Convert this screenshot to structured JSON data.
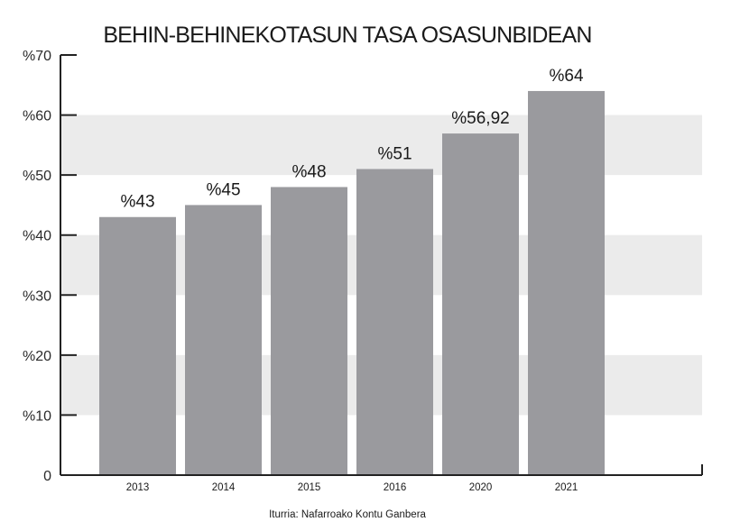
{
  "chart_data": {
    "type": "bar",
    "title": "BEHIN-BEHINEKOTASUN TASA OSASUNBIDEAN",
    "categories": [
      "2013",
      "2014",
      "2015",
      "2016",
      "2020",
      "2021"
    ],
    "values": [
      43,
      45,
      48,
      51,
      56.92,
      64
    ],
    "data_labels": [
      "%43",
      "%45",
      "%48",
      "%51",
      "%56,92",
      "%64"
    ],
    "ylim": [
      0,
      70
    ],
    "yticks": [
      0,
      10,
      20,
      30,
      40,
      50,
      60,
      70
    ],
    "ytick_labels": [
      "0",
      "%10",
      "%20",
      "%30",
      "%40",
      "%50",
      "%60",
      "%70"
    ],
    "xlabel": "",
    "ylabel": "",
    "grid": "alternating horizontal bands",
    "legend": "none",
    "source": "Iturria: Nafarroako Kontu Ganbera",
    "colors": {
      "bar": "#9a9a9e",
      "band": "#ebebeb",
      "axis": "#222222",
      "text": "#1a1a1a"
    }
  }
}
